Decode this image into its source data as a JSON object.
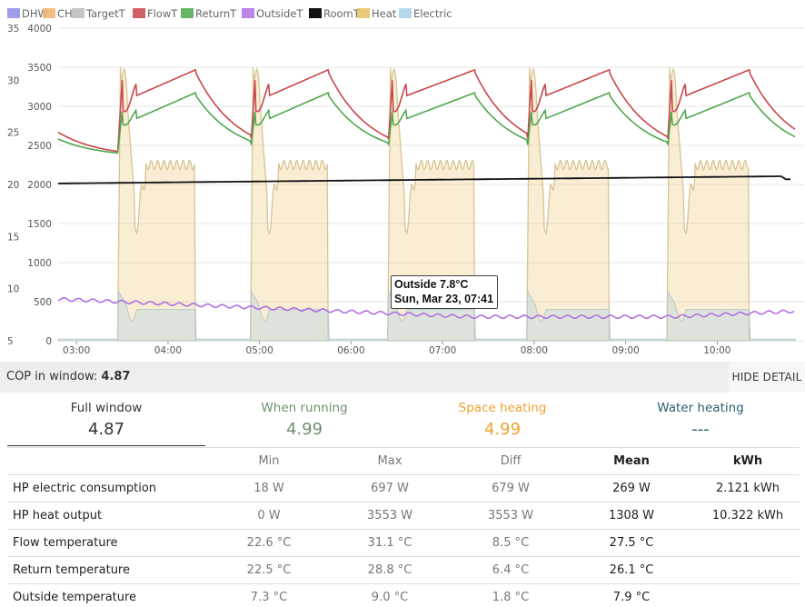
{
  "chart_data": {
    "type": "line",
    "legend": [
      {
        "name": "DHW",
        "color": "#8c8ce6"
      },
      {
        "name": "CH",
        "color": "#f0b46e"
      },
      {
        "name": "TargetT",
        "color": "#bbbbbb"
      },
      {
        "name": "FlowT",
        "color": "#c8464b"
      },
      {
        "name": "ReturnT",
        "color": "#4ea84e"
      },
      {
        "name": "OutsideT",
        "color": "#b070e0"
      },
      {
        "name": "RoomT",
        "color": "#111111"
      },
      {
        "name": "Heat",
        "color": "#e8c060"
      },
      {
        "name": "Electric",
        "color": "#a8d0ea"
      }
    ],
    "left_axis_ticks": [
      "35",
      "30",
      "25",
      "20",
      "15",
      "10",
      "5"
    ],
    "right_axis_ticks": [
      "4000",
      "3500",
      "3000",
      "2500",
      "2000",
      "1500",
      "1000",
      "500",
      "0"
    ],
    "x_ticks": [
      "03:00",
      "04:00",
      "05:00",
      "06:00",
      "07:00",
      "08:00",
      "09:00",
      "10:00"
    ],
    "temp_range": [
      5,
      35
    ],
    "power_range": [
      0,
      4000
    ],
    "x_range_hours": [
      2.8,
      10.85
    ],
    "cycles": [
      {
        "start": 3.45,
        "end": 4.3
      },
      {
        "start": 4.9,
        "end": 5.75
      },
      {
        "start": 6.4,
        "end": 7.35
      },
      {
        "start": 7.92,
        "end": 8.82
      },
      {
        "start": 9.45,
        "end": 10.35
      }
    ],
    "series_notes": {
      "heat_running_w": 2250,
      "heat_startup_peak_w": 3500,
      "electric_running_w": 400,
      "outside_temp_c": [
        9.0,
        7.3
      ],
      "room_temp_c": [
        20.1,
        20.8
      ]
    }
  },
  "tooltip": {
    "line1": "Outside 7.8°C",
    "line2": "Sun, Mar 23, 07:41"
  },
  "cop_bar": {
    "label": "COP in window:",
    "value": "4.87",
    "hide_button": "HIDE DETAIL"
  },
  "summary": [
    {
      "label": "Full window",
      "value": "4.87",
      "color": "#333333"
    },
    {
      "label": "When running",
      "value": "4.99",
      "color": "#6f8f6f"
    },
    {
      "label": "Space heating",
      "value": "4.99",
      "color": "#f0a030"
    },
    {
      "label": "Water heating",
      "value": "---",
      "color": "#2a5d70"
    }
  ],
  "stats": {
    "headers": [
      "",
      "Min",
      "Max",
      "Diff",
      "Mean",
      "kWh"
    ],
    "rows": [
      {
        "name": "HP electric consumption",
        "min": "18 W",
        "max": "697 W",
        "diff": "679 W",
        "mean": "269 W",
        "kwh": "2.121 kWh"
      },
      {
        "name": "HP heat output",
        "min": "0 W",
        "max": "3553 W",
        "diff": "3553 W",
        "mean": "1308 W",
        "kwh": "10.322 kWh"
      },
      {
        "name": "Flow temperature",
        "min": "22.6 °C",
        "max": "31.1 °C",
        "diff": "8.5 °C",
        "mean": "27.5 °C",
        "kwh": ""
      },
      {
        "name": "Return temperature",
        "min": "22.5 °C",
        "max": "28.8 °C",
        "diff": "6.4 °C",
        "mean": "26.1 °C",
        "kwh": ""
      },
      {
        "name": "Outside temperature",
        "min": "7.3 °C",
        "max": "9.0 °C",
        "diff": "1.8 °C",
        "mean": "7.9 °C",
        "kwh": ""
      }
    ]
  }
}
